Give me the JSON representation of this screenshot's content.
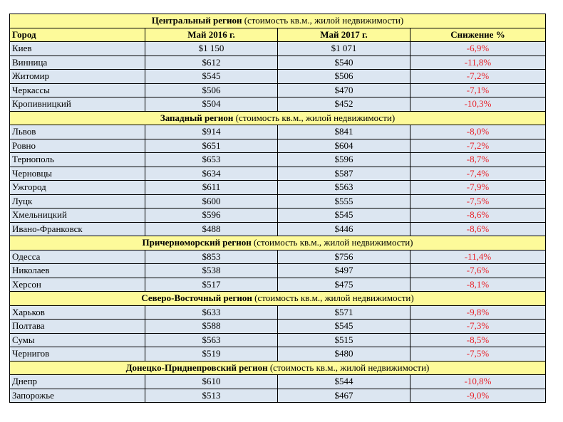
{
  "columns": {
    "city": "Город",
    "may2016": "Май 2016 г.",
    "may2017": "Май 2017 г.",
    "change": "Снижение %"
  },
  "regions": [
    {
      "name": "Центральный регион",
      "note": "(стоимость кв.м., жилой недвижимости)",
      "rows": [
        {
          "city": "Киев",
          "may2016": "$1 150",
          "may2017": "$1 071",
          "change": "-6,9%"
        },
        {
          "city": "Винница",
          "may2016": "$612",
          "may2017": "$540",
          "change": "-11,8%"
        },
        {
          "city": "Житомир",
          "may2016": "$545",
          "may2017": "$506",
          "change": "-7,2%"
        },
        {
          "city": "Черкассы",
          "may2016": "$506",
          "may2017": "$470",
          "change": "-7,1%"
        },
        {
          "city": "Кропивницкий",
          "may2016": "$504",
          "may2017": "$452",
          "change": "-10,3%"
        }
      ]
    },
    {
      "name": "Западный регион",
      "note": "(стоимость кв.м., жилой недвижимости)",
      "rows": [
        {
          "city": "Львов",
          "may2016": "$914",
          "may2017": "$841",
          "change": "-8,0%"
        },
        {
          "city": "Ровно",
          "may2016": "$651",
          "may2017": "$604",
          "change": "-7,2%"
        },
        {
          "city": "Тернополь",
          "may2016": "$653",
          "may2017": "$596",
          "change": "-8,7%"
        },
        {
          "city": "Черновцы",
          "may2016": "$634",
          "may2017": "$587",
          "change": "-7,4%"
        },
        {
          "city": "Ужгород",
          "may2016": "$611",
          "may2017": "$563",
          "change": "-7,9%"
        },
        {
          "city": "Луцк",
          "may2016": "$600",
          "may2017": "$555",
          "change": "-7,5%"
        },
        {
          "city": "Хмельницкий",
          "may2016": "$596",
          "may2017": "$545",
          "change": "-8,6%"
        },
        {
          "city": "Ивано-Франковск",
          "may2016": "$488",
          "may2017": "$446",
          "change": "-8,6%"
        }
      ]
    },
    {
      "name": "Причерноморский регион",
      "note": "(стоимость кв.м., жилой недвижимости)",
      "rows": [
        {
          "city": "Одесса",
          "may2016": "$853",
          "may2017": "$756",
          "change": "-11,4%"
        },
        {
          "city": "Николаев",
          "may2016": "$538",
          "may2017": "$497",
          "change": "-7,6%"
        },
        {
          "city": "Херсон",
          "may2016": "$517",
          "may2017": "$475",
          "change": "-8,1%"
        }
      ]
    },
    {
      "name": "Северо-Восточный регион",
      "note": "(стоимость кв.м., жилой недвижимости)",
      "rows": [
        {
          "city": "Харьков",
          "may2016": "$633",
          "may2017": "$571",
          "change": "-9,8%"
        },
        {
          "city": "Полтава",
          "may2016": "$588",
          "may2017": "$545",
          "change": "-7,3%"
        },
        {
          "city": "Сумы",
          "may2016": "$563",
          "may2017": "$515",
          "change": "-8,5%"
        },
        {
          "city": "Чернигов",
          "may2016": "$519",
          "may2017": "$480",
          "change": "-7,5%"
        }
      ]
    },
    {
      "name": "Донецко-Приднепровский регион",
      "note": "(стоимость кв.м., жилой недвижимости)",
      "rows": [
        {
          "city": "Днепр",
          "may2016": "$610",
          "may2017": "$544",
          "change": "-10,8%"
        },
        {
          "city": "Запорожье",
          "may2016": "$513",
          "may2017": "$467",
          "change": "-9,0%"
        }
      ]
    }
  ]
}
